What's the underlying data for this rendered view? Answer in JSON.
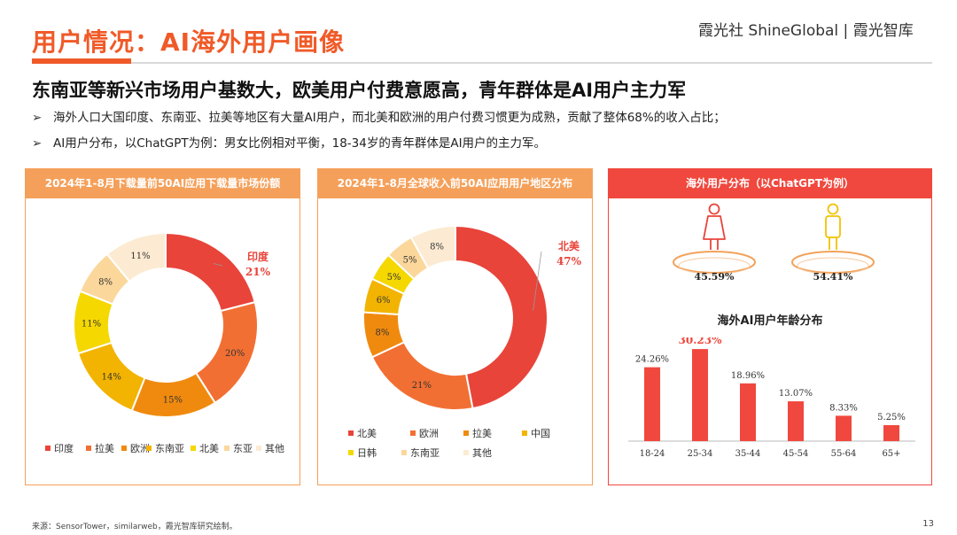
{
  "header": {
    "title": "用户情况：AI海外用户画像",
    "brand": "霞光社 ShineGlobal | 霞光智库"
  },
  "headline": "东南亚等新兴市场用户基数大，欧美用户付费意愿高，青年群体是AI用户主力军",
  "bullets": [
    "海外人口大国印度、东南亚、拉美等地区有大量AI用户，而北美和欧洲的用户付费习惯更为成熟，贡献了整体68%的收入占比；",
    "AI用户分布，以ChatGPT为例：男女比例相对平衡，18-34岁的青年群体是AI用户的主力军。"
  ],
  "bullet_marker": "➢",
  "panels": {
    "downloads_title": "2024年1-8月下载量前50AI应用下载量市场份额",
    "revenue_title": "2024年1-8月全球收入前50AI应用用户地区分布",
    "users_title": "海外用户分布（以ChatGPT为例）",
    "age_title": "海外AI用户年龄分布"
  },
  "gender": {
    "female_pct": "45.59%",
    "male_pct": "54.41%",
    "female_color": "#E8443A",
    "male_color": "#F2C200"
  },
  "colors": {
    "accent": "#F05A28",
    "red": "#F0483E"
  },
  "chart_data": [
    {
      "type": "pie",
      "title": "2024年1-8月下载量前50AI应用下载量市场份额",
      "categories": [
        "印度",
        "拉美",
        "欧洲",
        "东南亚",
        "北美",
        "东亚",
        "其他"
      ],
      "values": [
        21,
        20,
        15,
        14,
        11,
        8,
        11
      ],
      "colors": [
        "#E8443A",
        "#F26F33",
        "#F08A0E",
        "#F2B400",
        "#F5D800",
        "#FBD79B",
        "#FCEBD2"
      ],
      "labels": [
        "21%",
        "20%",
        "15%",
        "14%",
        "11%",
        "8%",
        "11%"
      ],
      "highlight": {
        "name": "印度",
        "value": "21%"
      }
    },
    {
      "type": "pie",
      "title": "2024年1-8月全球收入前50AI应用用户地区分布",
      "categories": [
        "北美",
        "欧洲",
        "拉美",
        "中国",
        "日韩",
        "东南亚",
        "其他"
      ],
      "values": [
        47,
        21,
        8,
        6,
        5,
        5,
        8
      ],
      "colors": [
        "#E8443A",
        "#F26F33",
        "#F08A0E",
        "#F2B400",
        "#F5D800",
        "#FBD79B",
        "#FCEBD2"
      ],
      "labels": [
        "47%",
        "21%",
        "8%",
        "6%",
        "5%",
        "5%",
        "8%"
      ],
      "highlight": {
        "name": "北美",
        "value": "47%"
      }
    },
    {
      "type": "bar",
      "title": "海外AI用户年龄分布",
      "categories": [
        "18-24",
        "25-34",
        "35-44",
        "45-54",
        "55-64",
        "65+"
      ],
      "values": [
        24.26,
        30.23,
        18.96,
        13.07,
        8.33,
        5.25
      ],
      "labels": [
        "24.26%",
        "30.23%",
        "18.96%",
        "13.07%",
        "8.33%",
        "5.25%"
      ],
      "highlight_index": 1,
      "ylim": [
        0,
        32
      ]
    }
  ],
  "footer": {
    "source": "来源：SensorTower，similarweb，霞光智库研究绘制。",
    "page": "13"
  }
}
